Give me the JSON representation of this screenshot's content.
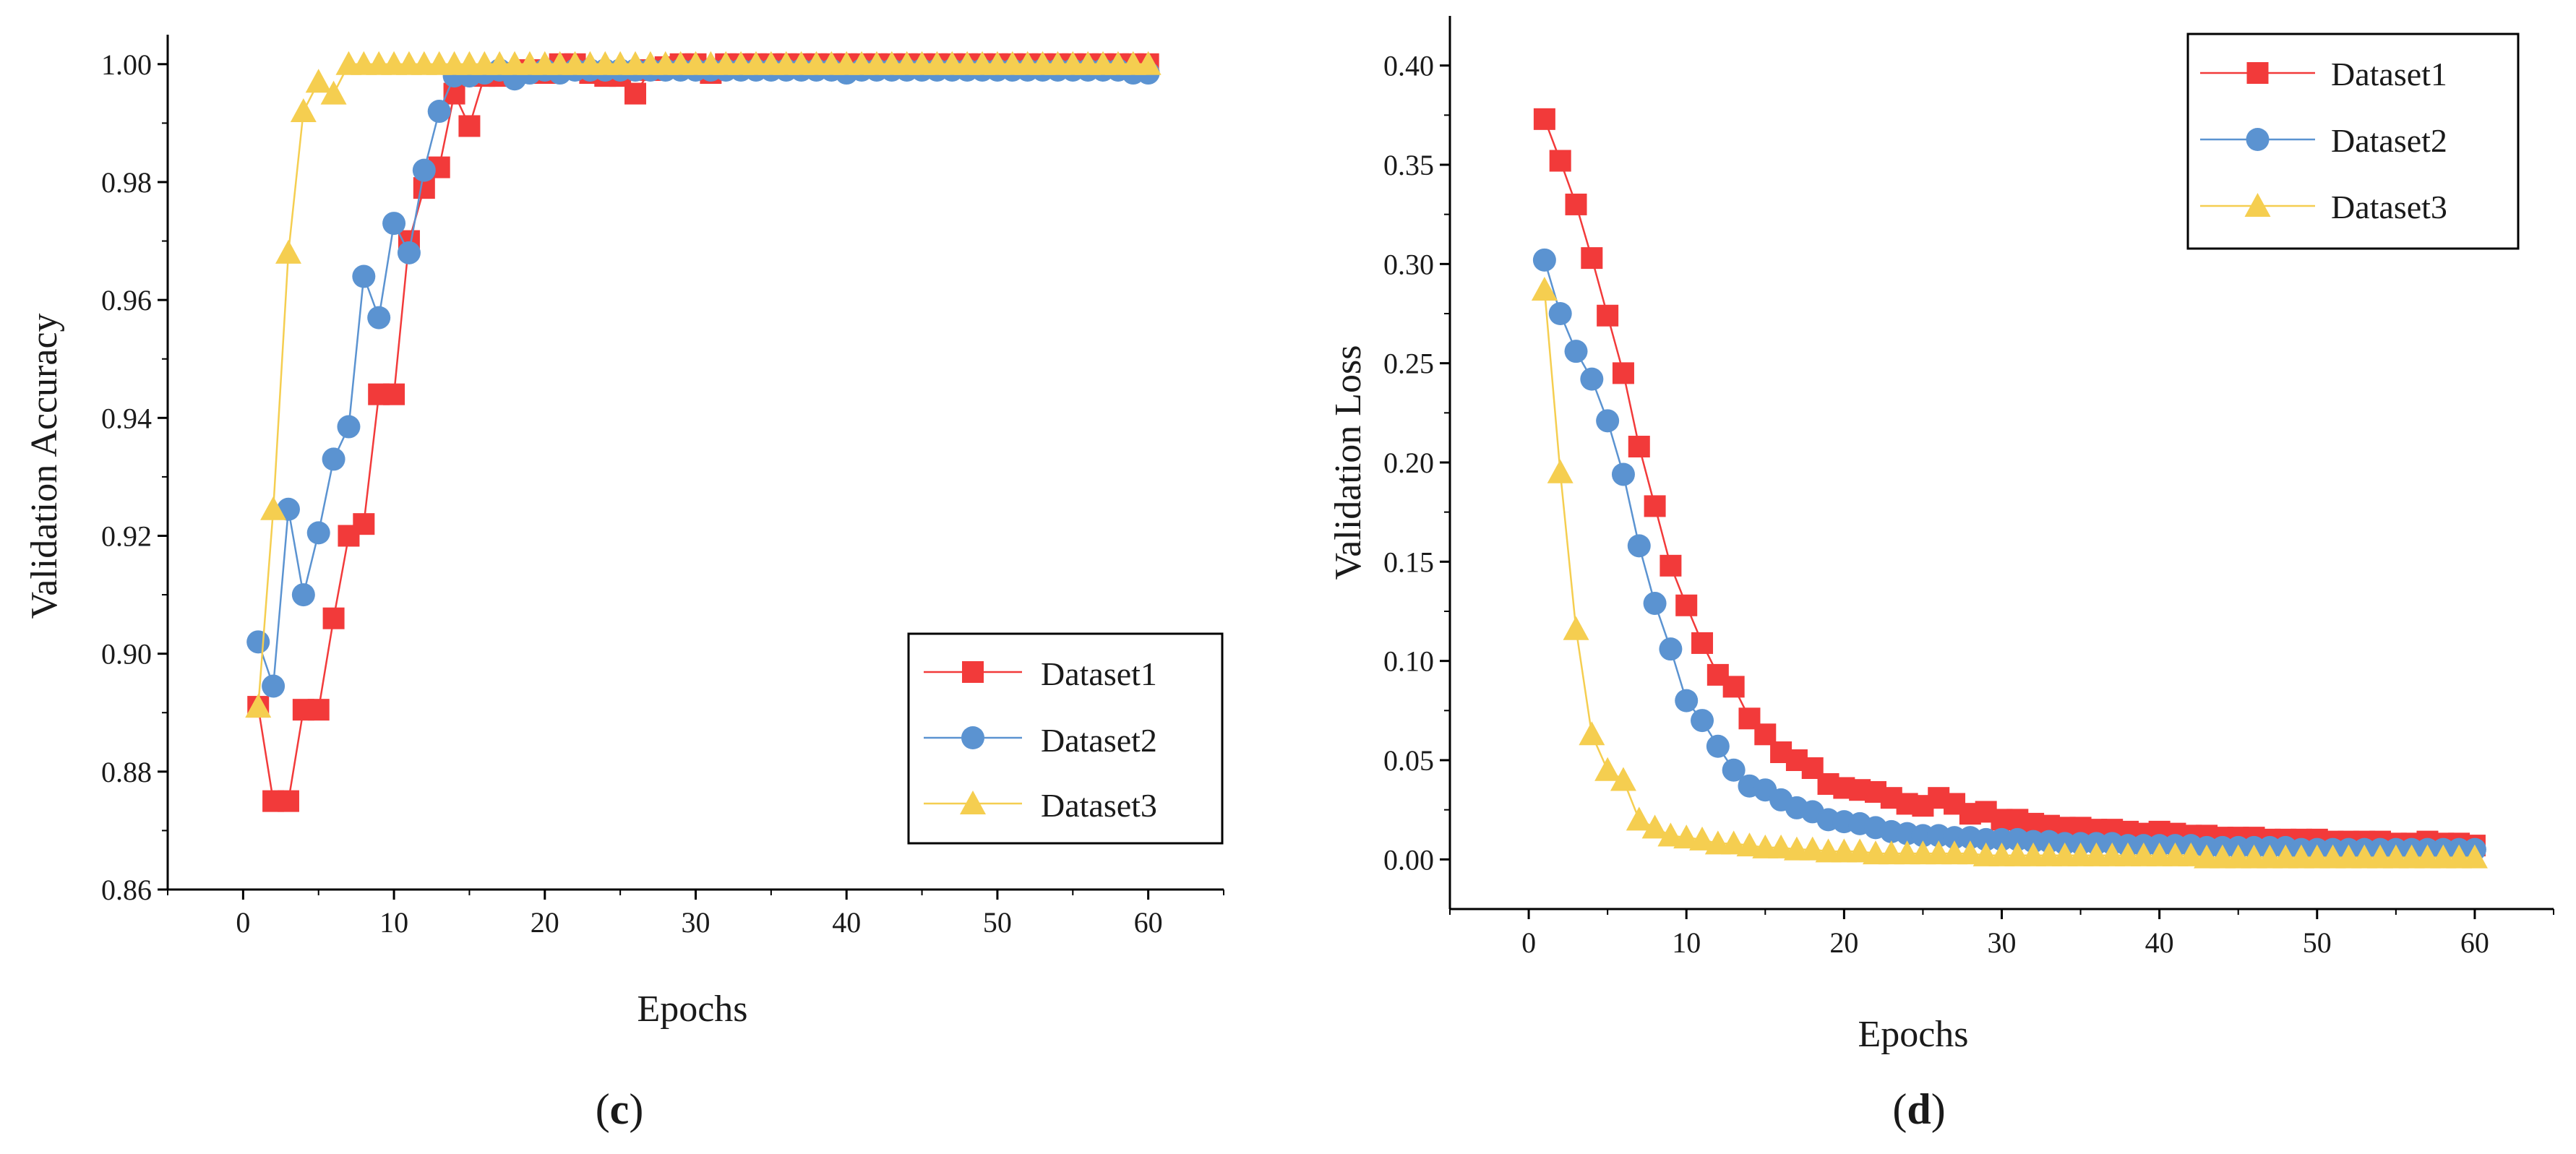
{
  "colors": {
    "Dataset1": "#f23a3a",
    "Dataset2": "#5b93d1",
    "Dataset3": "#f5ce50"
  },
  "chart_data": [
    {
      "type": "line",
      "panel_label": "c",
      "panel_label_open": "(",
      "panel_label_close": ")",
      "xlabel": "Epochs",
      "ylabel": "Validation Accuracy",
      "xlim": [
        -5,
        65
      ],
      "ylim": [
        0.86,
        1.005
      ],
      "xticks": [
        0,
        10,
        20,
        30,
        40,
        50,
        60
      ],
      "yticks": [
        0.86,
        0.88,
        0.9,
        0.92,
        0.94,
        0.96,
        0.98,
        1.0
      ],
      "ytick_labels": [
        "0.86",
        "0.88",
        "0.90",
        "0.92",
        "0.94",
        "0.96",
        "0.98",
        "1.00"
      ],
      "legend_position": "lower-right",
      "series": [
        {
          "name": "Dataset1",
          "marker": "square",
          "x": [
            1,
            2,
            3,
            4,
            5,
            6,
            7,
            8,
            9,
            10,
            11,
            12,
            13,
            14,
            15,
            16,
            17,
            18,
            19,
            20,
            21,
            22,
            23,
            24,
            25,
            26,
            27,
            28,
            29,
            30,
            31,
            32,
            33,
            34,
            35,
            36,
            37,
            38,
            39,
            40,
            41,
            42,
            43,
            44,
            45,
            46,
            47,
            48,
            49,
            50,
            51,
            52,
            53,
            54,
            55,
            56,
            57,
            58,
            59,
            60
          ],
          "y": [
            0.891,
            0.875,
            0.875,
            0.8905,
            0.8905,
            0.906,
            0.92,
            0.922,
            0.944,
            0.944,
            0.97,
            0.979,
            0.9825,
            0.995,
            0.9895,
            0.998,
            0.998,
            0.9985,
            0.999,
            0.9985,
            1.0,
            1.0,
            0.9985,
            0.998,
            0.998,
            0.995,
            0.999,
            0.9995,
            1.0,
            1.0,
            0.9985,
            1.0,
            1.0,
            1.0,
            1.0,
            1.0,
            1.0,
            1.0,
            1.0,
            1.0,
            1.0,
            1.0,
            1.0,
            1.0,
            1.0,
            1.0,
            1.0,
            1.0,
            1.0,
            1.0,
            1.0,
            1.0,
            1.0,
            1.0,
            1.0,
            1.0,
            1.0,
            1.0,
            1.0,
            1.0
          ]
        },
        {
          "name": "Dataset2",
          "marker": "circle",
          "x": [
            1,
            2,
            3,
            4,
            5,
            6,
            7,
            8,
            9,
            10,
            11,
            12,
            13,
            14,
            15,
            16,
            17,
            18,
            19,
            20,
            21,
            22,
            23,
            24,
            25,
            26,
            27,
            28,
            29,
            30,
            31,
            32,
            33,
            34,
            35,
            36,
            37,
            38,
            39,
            40,
            41,
            42,
            43,
            44,
            45,
            46,
            47,
            48,
            49,
            50,
            51,
            52,
            53,
            54,
            55,
            56,
            57,
            58,
            59,
            60
          ],
          "y": [
            0.902,
            0.8945,
            0.9245,
            0.91,
            0.9205,
            0.933,
            0.9385,
            0.964,
            0.957,
            0.973,
            0.968,
            0.982,
            0.992,
            0.998,
            0.998,
            0.9985,
            0.999,
            0.9975,
            0.9985,
            0.999,
            0.9985,
            0.999,
            0.999,
            0.999,
            0.999,
            0.999,
            0.999,
            0.999,
            0.999,
            0.999,
            0.999,
            0.999,
            0.999,
            0.999,
            0.999,
            0.999,
            0.999,
            0.999,
            0.999,
            0.9985,
            0.999,
            0.999,
            0.999,
            0.999,
            0.999,
            0.999,
            0.999,
            0.999,
            0.999,
            0.999,
            0.999,
            0.999,
            0.999,
            0.999,
            0.999,
            0.999,
            0.999,
            0.999,
            0.9985,
            0.9985
          ]
        },
        {
          "name": "Dataset3",
          "marker": "triangle",
          "x": [
            1,
            2,
            3,
            4,
            5,
            6,
            7,
            8,
            9,
            10,
            11,
            12,
            13,
            14,
            15,
            16,
            17,
            18,
            19,
            20,
            21,
            22,
            23,
            24,
            25,
            26,
            27,
            28,
            29,
            30,
            31,
            32,
            33,
            34,
            35,
            36,
            37,
            38,
            39,
            40,
            41,
            42,
            43,
            44,
            45,
            46,
            47,
            48,
            49,
            50,
            51,
            52,
            53,
            54,
            55,
            56,
            57,
            58,
            59,
            60
          ],
          "y": [
            0.891,
            0.9245,
            0.968,
            0.992,
            0.997,
            0.995,
            1.0,
            1.0,
            1.0,
            1.0,
            1.0,
            1.0,
            1.0,
            1.0,
            1.0,
            1.0,
            1.0,
            1.0,
            1.0,
            1.0,
            1.0,
            1.0,
            1.0,
            1.0,
            1.0,
            1.0,
            1.0,
            1.0,
            1.0,
            1.0,
            1.0,
            1.0,
            1.0,
            1.0,
            1.0,
            1.0,
            1.0,
            1.0,
            1.0,
            1.0,
            1.0,
            1.0,
            1.0,
            1.0,
            1.0,
            1.0,
            1.0,
            1.0,
            1.0,
            1.0,
            1.0,
            1.0,
            1.0,
            1.0,
            1.0,
            1.0,
            1.0,
            1.0,
            1.0,
            1.0
          ]
        }
      ]
    },
    {
      "type": "line",
      "panel_label": "d",
      "panel_label_open": "(",
      "panel_label_close": ")",
      "xlabel": "Epochs",
      "ylabel": "Validation Loss",
      "xlim": [
        -5,
        65
      ],
      "ylim": [
        -0.025,
        0.425
      ],
      "xticks": [
        0,
        10,
        20,
        30,
        40,
        50,
        60
      ],
      "yticks": [
        0.0,
        0.05,
        0.1,
        0.15,
        0.2,
        0.25,
        0.3,
        0.35,
        0.4
      ],
      "ytick_labels": [
        "0.00",
        "0.05",
        "0.10",
        "0.15",
        "0.20",
        "0.25",
        "0.30",
        "0.35",
        "0.40"
      ],
      "legend_position": "top-right",
      "series": [
        {
          "name": "Dataset1",
          "marker": "square",
          "x": [
            1,
            2,
            3,
            4,
            5,
            6,
            7,
            8,
            9,
            10,
            11,
            12,
            13,
            14,
            15,
            16,
            17,
            18,
            19,
            20,
            21,
            22,
            23,
            24,
            25,
            26,
            27,
            28,
            29,
            30,
            31,
            32,
            33,
            34,
            35,
            36,
            37,
            38,
            39,
            40,
            41,
            42,
            43,
            44,
            45,
            46,
            47,
            48,
            49,
            50,
            51,
            52,
            53,
            54,
            55,
            56,
            57,
            58,
            59,
            60
          ],
          "y": [
            0.373,
            0.352,
            0.33,
            0.303,
            0.274,
            0.245,
            0.208,
            0.178,
            0.148,
            0.128,
            0.109,
            0.093,
            0.087,
            0.071,
            0.063,
            0.054,
            0.05,
            0.046,
            0.038,
            0.036,
            0.035,
            0.034,
            0.031,
            0.028,
            0.027,
            0.031,
            0.028,
            0.023,
            0.024,
            0.02,
            0.02,
            0.018,
            0.017,
            0.016,
            0.016,
            0.015,
            0.015,
            0.014,
            0.013,
            0.014,
            0.013,
            0.012,
            0.012,
            0.011,
            0.011,
            0.011,
            0.01,
            0.01,
            0.01,
            0.01,
            0.009,
            0.009,
            0.009,
            0.009,
            0.008,
            0.008,
            0.009,
            0.008,
            0.008,
            0.007
          ]
        },
        {
          "name": "Dataset2",
          "marker": "circle",
          "x": [
            1,
            2,
            3,
            4,
            5,
            6,
            7,
            8,
            9,
            10,
            11,
            12,
            13,
            14,
            15,
            16,
            17,
            18,
            19,
            20,
            21,
            22,
            23,
            24,
            25,
            26,
            27,
            28,
            29,
            30,
            31,
            32,
            33,
            34,
            35,
            36,
            37,
            38,
            39,
            40,
            41,
            42,
            43,
            44,
            45,
            46,
            47,
            48,
            49,
            50,
            51,
            52,
            53,
            54,
            55,
            56,
            57,
            58,
            59,
            60
          ],
          "y": [
            0.302,
            0.275,
            0.256,
            0.242,
            0.221,
            0.194,
            0.158,
            0.129,
            0.106,
            0.08,
            0.07,
            0.057,
            0.045,
            0.037,
            0.035,
            0.03,
            0.026,
            0.024,
            0.02,
            0.019,
            0.018,
            0.016,
            0.014,
            0.013,
            0.012,
            0.012,
            0.011,
            0.011,
            0.01,
            0.01,
            0.01,
            0.009,
            0.009,
            0.008,
            0.008,
            0.008,
            0.008,
            0.007,
            0.007,
            0.007,
            0.007,
            0.007,
            0.006,
            0.006,
            0.006,
            0.006,
            0.006,
            0.006,
            0.005,
            0.005,
            0.005,
            0.005,
            0.005,
            0.005,
            0.005,
            0.005,
            0.005,
            0.005,
            0.005,
            0.005
          ]
        },
        {
          "name": "Dataset3",
          "marker": "triangle",
          "x": [
            1,
            2,
            3,
            4,
            5,
            6,
            7,
            8,
            9,
            10,
            11,
            12,
            13,
            14,
            15,
            16,
            17,
            18,
            19,
            20,
            21,
            22,
            23,
            24,
            25,
            26,
            27,
            28,
            29,
            30,
            31,
            32,
            33,
            34,
            35,
            36,
            37,
            38,
            39,
            40,
            41,
            42,
            43,
            44,
            45,
            46,
            47,
            48,
            49,
            50,
            51,
            52,
            53,
            54,
            55,
            56,
            57,
            58,
            59,
            60
          ],
          "y": [
            0.287,
            0.195,
            0.116,
            0.063,
            0.045,
            0.04,
            0.02,
            0.016,
            0.012,
            0.011,
            0.01,
            0.008,
            0.008,
            0.007,
            0.006,
            0.006,
            0.005,
            0.005,
            0.004,
            0.004,
            0.004,
            0.003,
            0.003,
            0.003,
            0.003,
            0.003,
            0.003,
            0.003,
            0.002,
            0.002,
            0.002,
            0.002,
            0.002,
            0.002,
            0.002,
            0.002,
            0.002,
            0.002,
            0.002,
            0.002,
            0.002,
            0.002,
            0.001,
            0.001,
            0.001,
            0.001,
            0.001,
            0.001,
            0.001,
            0.001,
            0.001,
            0.001,
            0.001,
            0.001,
            0.001,
            0.001,
            0.001,
            0.001,
            0.001,
            0.001
          ]
        }
      ]
    }
  ]
}
